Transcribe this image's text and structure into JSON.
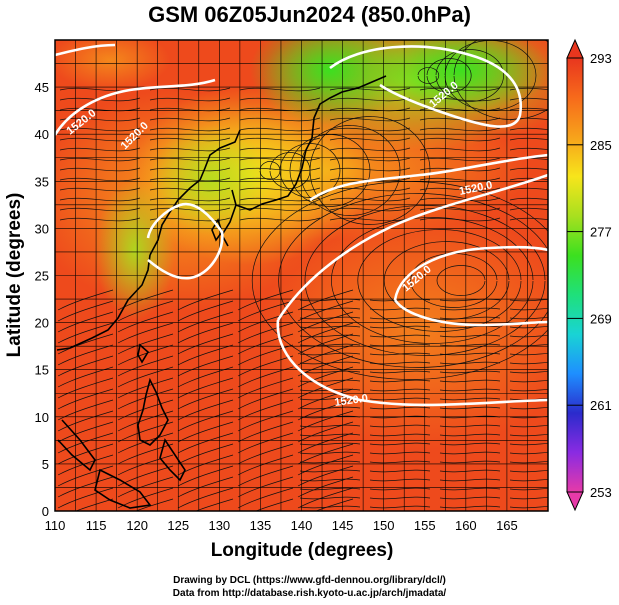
{
  "title": "GSM 06Z05Jun2024 (850.0hPa)",
  "x_axis": {
    "label": "Longitude (degrees)",
    "min": 110,
    "max": 170,
    "ticks": [
      110,
      115,
      120,
      125,
      130,
      135,
      140,
      145,
      150,
      155,
      160,
      165
    ]
  },
  "y_axis": {
    "label": "Latitude  (degrees)",
    "min": 0,
    "max": 50,
    "ticks": [
      0,
      5,
      10,
      15,
      20,
      25,
      30,
      35,
      40,
      45
    ]
  },
  "colorbar": {
    "min": 253,
    "max": 293,
    "tick_labels": [
      253,
      261,
      269,
      277,
      285,
      293
    ],
    "colors": [
      "#e63aa8",
      "#8a2be2",
      "#2b2bcc",
      "#1e8fff",
      "#19d4d4",
      "#1fe07a",
      "#3ce01f",
      "#a8e01f",
      "#f7e51b",
      "#f7a21b",
      "#f76a1b",
      "#e8361e"
    ]
  },
  "contours": {
    "level_label": "1520.0",
    "color": "#ffffff"
  },
  "credits": {
    "line1": "Drawing by DCL (https://www.gfd-dennou.org/library/dcl/)",
    "line2": "Data from http://database.rish.kyoto-u.ac.jp/arch/jmadata/"
  }
}
